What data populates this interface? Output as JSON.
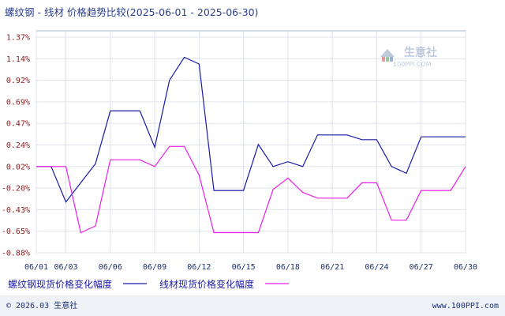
{
  "chart_data": {
    "type": "line",
    "title": "螺纹钢 - 线材 价格趋势比较(2025-06-01 - 2025-06-30)",
    "x": [
      "06/01",
      "06/02",
      "06/03",
      "06/04",
      "06/05",
      "06/06",
      "06/07",
      "06/08",
      "06/09",
      "06/10",
      "06/11",
      "06/12",
      "06/13",
      "06/14",
      "06/15",
      "06/16",
      "06/17",
      "06/18",
      "06/19",
      "06/20",
      "06/21",
      "06/22",
      "06/23",
      "06/24",
      "06/25",
      "06/26",
      "06/27",
      "06/28",
      "06/29",
      "06/30"
    ],
    "x_tick_labels": [
      "06/01",
      "06/03",
      "06/06",
      "06/09",
      "06/12",
      "06/15",
      "06/18",
      "06/21",
      "06/24",
      "06/27",
      "06/30"
    ],
    "y_tick_labels": [
      "1.37%",
      "1.14%",
      "0.92%",
      "0.69%",
      "0.47%",
      "0.24%",
      "0.02%",
      "-0.20%",
      "-0.43%",
      "-0.65%",
      "-0.88%"
    ],
    "ylim": [
      -0.88,
      1.37
    ],
    "unit": "%",
    "grid": true,
    "legend_position": "bottom",
    "series": [
      {
        "name": "螺纹钢现货价格变化幅度",
        "color": "#1a1aa6",
        "values": [
          0.02,
          0.02,
          -0.35,
          -0.15,
          0.05,
          0.6,
          0.6,
          0.6,
          0.22,
          0.92,
          1.16,
          1.09,
          -0.23,
          -0.23,
          -0.23,
          0.25,
          0.02,
          0.07,
          0.02,
          0.35,
          0.35,
          0.35,
          0.3,
          0.3,
          0.02,
          -0.05,
          0.33,
          0.33,
          0.33,
          0.33
        ]
      },
      {
        "name": "线材现货价格变化幅度",
        "color": "#e81ee8",
        "values": [
          0.02,
          0.02,
          0.02,
          -0.67,
          -0.6,
          0.09,
          0.09,
          0.09,
          0.02,
          0.23,
          0.23,
          -0.07,
          -0.67,
          -0.67,
          -0.67,
          -0.67,
          -0.22,
          -0.1,
          -0.25,
          -0.31,
          -0.31,
          -0.31,
          -0.15,
          -0.15,
          -0.54,
          -0.54,
          -0.23,
          -0.23,
          -0.23,
          0.02
        ]
      }
    ]
  },
  "watermark": {
    "brand": "生意社",
    "url": "100PPI.COM"
  },
  "footer": {
    "copyright": "© 2026.03 生意社",
    "site": "www.100PPI.com"
  }
}
